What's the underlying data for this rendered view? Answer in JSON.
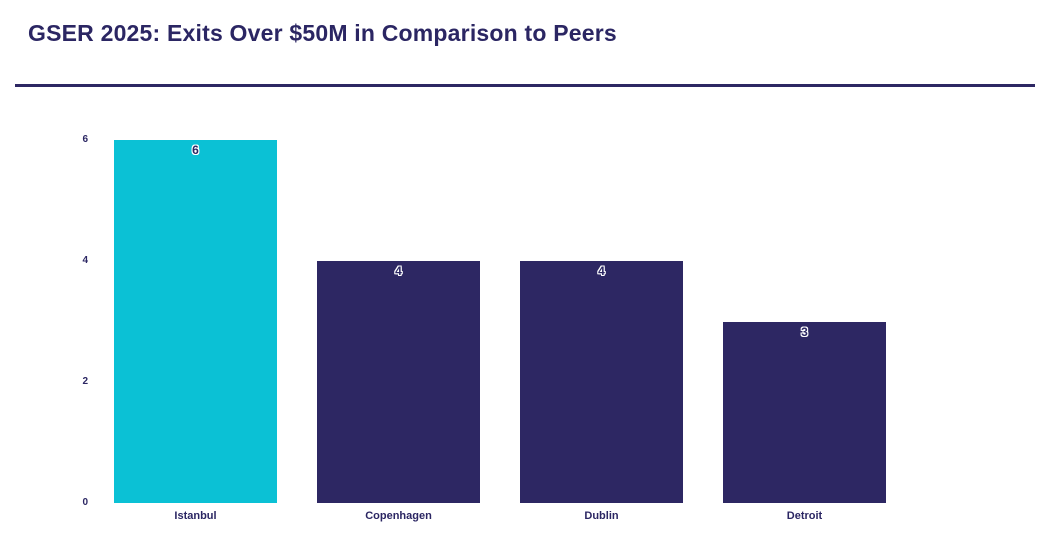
{
  "page": {
    "title": "GSER 2025: Exits Over $50M in Comparison to Peers"
  },
  "colors": {
    "title": "#2b2663",
    "divider": "#2d2763",
    "highlight_bar": "#0bc1d5",
    "default_bar": "#2d2763",
    "axis_text": "#2b2663",
    "value_label_text": "#2b2663",
    "value_label_halo": "#ffffff",
    "background": "#ffffff"
  },
  "chart_data": {
    "type": "bar",
    "title": "GSER 2025: Exits Over $50M in Comparison to Peers",
    "categories": [
      "Istanbul",
      "Copenhagen",
      "Dublin",
      "Detroit"
    ],
    "values": [
      6,
      4,
      4,
      3
    ],
    "bar_colors": [
      "#0bc1d5",
      "#2d2763",
      "#2d2763",
      "#2d2763"
    ],
    "highlighted_category": "Istanbul",
    "value_labels": [
      6,
      4,
      4,
      3
    ],
    "xlabel": "",
    "ylabel": "",
    "ylim": [
      0,
      6
    ],
    "yticks": [
      0,
      2,
      4,
      6
    ],
    "grid": false,
    "legend": false,
    "axis_lines": false
  }
}
